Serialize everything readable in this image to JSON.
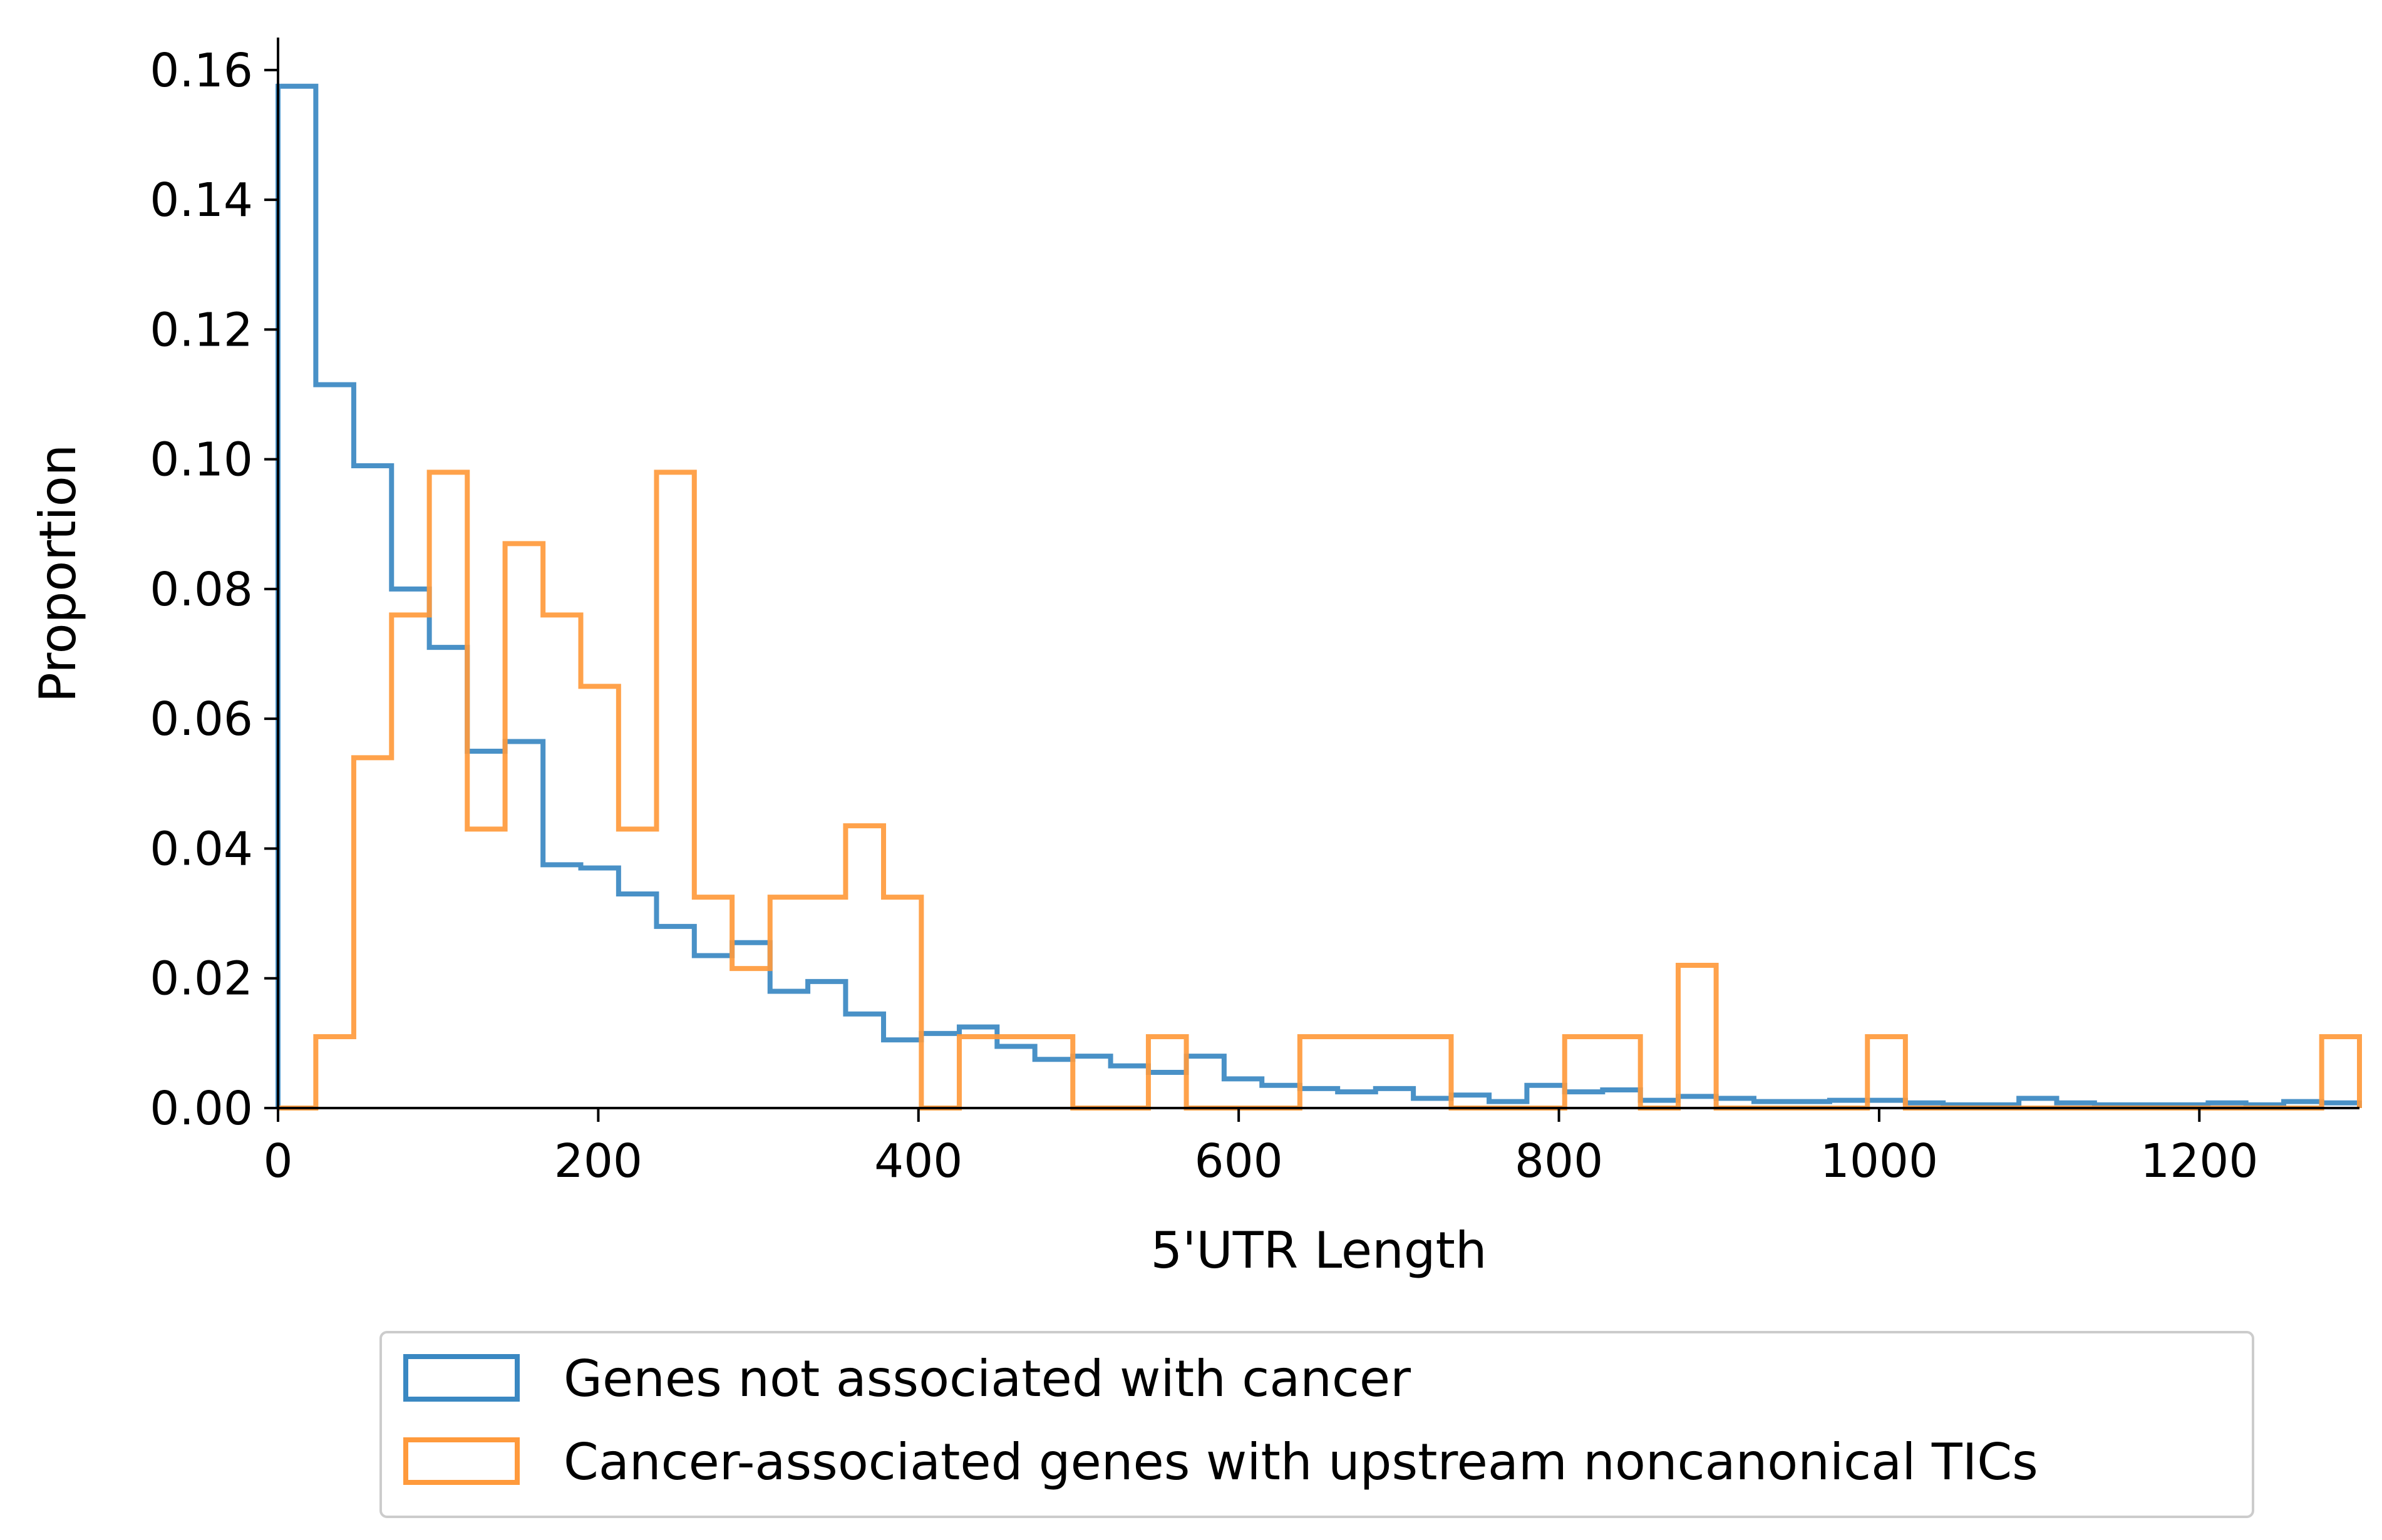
{
  "chart_data": {
    "type": "histogram-step",
    "title": "",
    "xlabel": "5'UTR Length",
    "ylabel": "Proportion",
    "xlim": [
      0,
      1300
    ],
    "ylim": [
      0,
      0.165
    ],
    "xticks": [
      0,
      200,
      400,
      600,
      800,
      1000,
      1200
    ],
    "xtick_labels": [
      "0",
      "200",
      "400",
      "600",
      "800",
      "1000",
      "1200"
    ],
    "yticks": [
      0.0,
      0.02,
      0.04,
      0.06,
      0.08,
      0.1,
      0.12,
      0.14,
      0.16
    ],
    "ytick_labels": [
      "0.00",
      "0.02",
      "0.04",
      "0.06",
      "0.08",
      "0.10",
      "0.12",
      "0.14",
      "0.16"
    ],
    "grid": false,
    "legend_position": "bottom-center, outside plot",
    "bin_edges": [
      0,
      23.6,
      47.3,
      70.9,
      94.5,
      118.2,
      141.8,
      165.5,
      189.1,
      212.7,
      236.4,
      260,
      283.6,
      307.3,
      330.9,
      354.5,
      378.2,
      401.8,
      425.5,
      449.1,
      472.7,
      496.4,
      520,
      543.6,
      567.3,
      590.9,
      614.5,
      638.2,
      661.8,
      685.5,
      709.1,
      732.7,
      756.4,
      780,
      803.6,
      827.3,
      850.9,
      874.5,
      898.2,
      921.8,
      945.5,
      969.1,
      992.7,
      1016.4,
      1040,
      1063.6,
      1087.3,
      1110.9,
      1134.5,
      1158.2,
      1181.8,
      1205.5,
      1229.1,
      1252.7,
      1276.4,
      1300
    ],
    "series": [
      {
        "name": "Genes not associated with cancer",
        "color": "#3a88c2",
        "values": [
          0.1575,
          0.1115,
          0.099,
          0.08,
          0.071,
          0.055,
          0.0565,
          0.0375,
          0.037,
          0.033,
          0.028,
          0.0235,
          0.0255,
          0.018,
          0.0195,
          0.0145,
          0.0105,
          0.0115,
          0.0125,
          0.0095,
          0.0075,
          0.008,
          0.0065,
          0.0055,
          0.008,
          0.0045,
          0.0035,
          0.003,
          0.0025,
          0.003,
          0.0015,
          0.002,
          0.001,
          0.0035,
          0.0025,
          0.0028,
          0.0012,
          0.0018,
          0.0015,
          0.001,
          0.001,
          0.0012,
          0.0012,
          0.0008,
          0.0005,
          0.0005,
          0.0015,
          0.0008,
          0.0005,
          0.0005,
          0.0005,
          0.0008,
          0.0005,
          0.001,
          0.0008
        ]
      },
      {
        "name": "Cancer-associated genes with upstream noncanonical TICs",
        "color": "#ff9a3c",
        "values": [
          0.0,
          0.011,
          0.054,
          0.076,
          0.098,
          0.043,
          0.087,
          0.076,
          0.065,
          0.043,
          0.098,
          0.0325,
          0.0215,
          0.0325,
          0.0325,
          0.0435,
          0.0325,
          0.0,
          0.011,
          0.011,
          0.011,
          0.0,
          0.0,
          0.011,
          0.0,
          0.0,
          0.0,
          0.011,
          0.011,
          0.011,
          0.011,
          0.0,
          0.0,
          0.0,
          0.011,
          0.011,
          0.0,
          0.022,
          0.0,
          0.0,
          0.0,
          0.0,
          0.011,
          0.0,
          0.0,
          0.0,
          0.0,
          0.0,
          0.0,
          0.0,
          0.0,
          0.0,
          0.0,
          0.0,
          0.011
        ]
      }
    ]
  }
}
